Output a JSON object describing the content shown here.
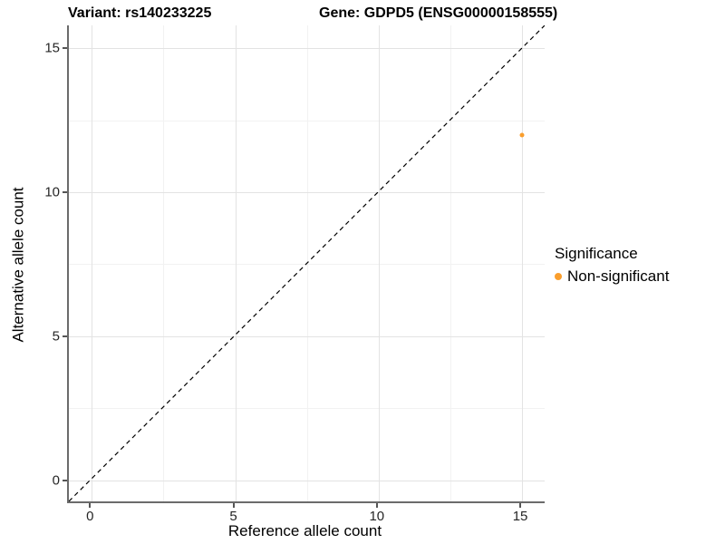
{
  "titles": {
    "variant": "Variant: rs140233225",
    "gene": "Gene: GDPD5 (ENSG00000158555)"
  },
  "axes": {
    "x": {
      "label": "Reference allele count"
    },
    "y": {
      "label": "Alternative allele count"
    }
  },
  "legend": {
    "title": "Significance",
    "items": [
      {
        "label": "Non-significant",
        "color": "#FA9E2D"
      }
    ]
  },
  "chart_data": {
    "type": "scatter",
    "title": "Variant: rs140233225    Gene: GDPD5 (ENSG00000158555)",
    "xlabel": "Reference allele count",
    "ylabel": "Alternative allele count",
    "xlim": [
      -0.8,
      15.8
    ],
    "ylim": [
      -0.75,
      15.8
    ],
    "x_ticks": [
      0,
      5,
      10,
      15
    ],
    "y_ticks": [
      0,
      5,
      10,
      15
    ],
    "x_minor_ticks": [
      2.5,
      7.5,
      12.5
    ],
    "y_minor_ticks": [
      2.5,
      7.5,
      12.5
    ],
    "grid": true,
    "legend_position": "right",
    "series": [
      {
        "name": "Non-significant",
        "color": "#FA9E2D",
        "points": [
          {
            "x": 15,
            "y": 12
          }
        ]
      }
    ],
    "reference_line": {
      "equation": "y = x",
      "style": "dashed",
      "color": "#000000"
    }
  }
}
